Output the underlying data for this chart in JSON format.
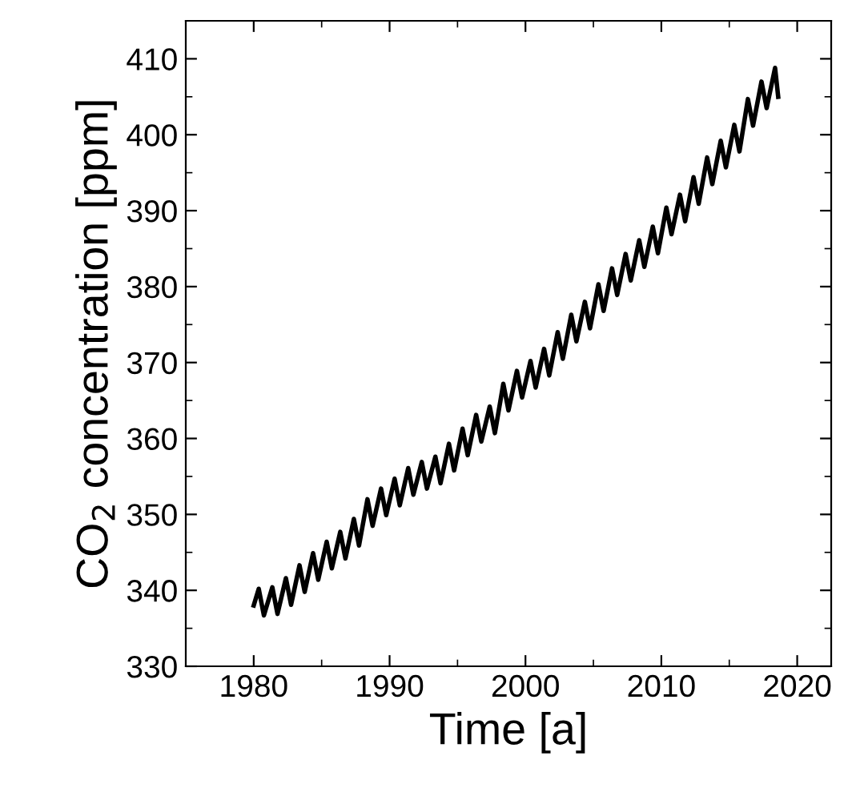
{
  "chart_data": {
    "type": "line",
    "xlabel": "Time [a]",
    "ylabel": "CO$_{2}$ concentration [ppm]",
    "xlim": [
      1975,
      2022.5
    ],
    "xticks": [
      1980,
      1990,
      2000,
      2010,
      2020
    ],
    "ylim": [
      330,
      415
    ],
    "yticks": [
      330,
      340,
      350,
      360,
      370,
      380,
      390,
      400,
      410
    ],
    "grid": false,
    "marker": "none",
    "line_style": "solid",
    "series": [
      {
        "color": "#000000",
        "x": [
          1980.0,
          1980.37,
          1980.75,
          1981.37,
          1981.75,
          1982.37,
          1982.75,
          1983.37,
          1983.75,
          1984.37,
          1984.75,
          1985.37,
          1985.75,
          1986.37,
          1986.75,
          1987.37,
          1987.75,
          1988.37,
          1988.75,
          1989.37,
          1989.75,
          1990.37,
          1990.75,
          1991.37,
          1991.75,
          1992.37,
          1992.75,
          1993.37,
          1993.75,
          1994.37,
          1994.75,
          1995.37,
          1995.75,
          1996.37,
          1996.75,
          1997.37,
          1997.75,
          1998.37,
          1998.75,
          1999.37,
          1999.75,
          2000.37,
          2000.75,
          2001.37,
          2001.75,
          2002.37,
          2002.75,
          2003.37,
          2003.75,
          2004.37,
          2004.75,
          2005.37,
          2005.75,
          2006.37,
          2006.75,
          2007.37,
          2007.75,
          2008.37,
          2008.75,
          2009.37,
          2009.75,
          2010.37,
          2010.75,
          2011.37,
          2011.75,
          2012.37,
          2012.75,
          2013.37,
          2013.75,
          2014.37,
          2014.75,
          2015.37,
          2015.75,
          2016.37,
          2016.75,
          2017.37,
          2017.75,
          2018.37,
          2018.6
        ],
        "values": [
          338.0,
          340.2,
          336.7,
          340.4,
          336.9,
          341.6,
          338.1,
          343.3,
          339.8,
          344.9,
          341.4,
          346.4,
          342.9,
          347.7,
          344.2,
          349.4,
          345.9,
          352.0,
          348.5,
          353.4,
          349.9,
          354.7,
          351.2,
          356.1,
          352.6,
          356.9,
          353.4,
          357.6,
          354.1,
          359.3,
          355.8,
          361.3,
          357.8,
          363.1,
          359.6,
          364.2,
          360.7,
          367.2,
          363.7,
          368.9,
          365.4,
          370.2,
          366.7,
          371.8,
          368.3,
          374.0,
          370.5,
          376.3,
          372.8,
          378.0,
          374.5,
          380.3,
          376.8,
          382.4,
          378.9,
          384.3,
          380.8,
          386.1,
          382.6,
          387.9,
          384.4,
          390.4,
          386.9,
          392.1,
          388.6,
          394.4,
          390.9,
          397.0,
          393.5,
          399.2,
          395.7,
          401.3,
          397.8,
          404.7,
          401.2,
          407.0,
          403.5,
          408.8,
          405.0
        ]
      }
    ]
  }
}
